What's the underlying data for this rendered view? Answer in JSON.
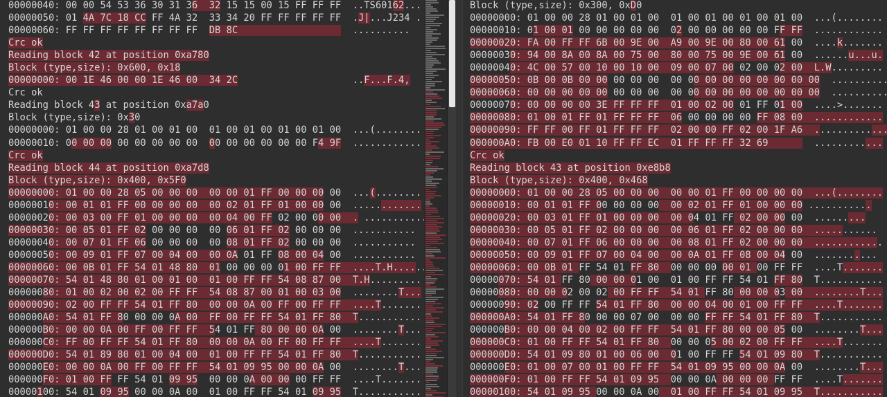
{
  "colors": {
    "background": "#2e2e2e",
    "diff_highlight": "#6c2b32",
    "text": "#d6d6d6"
  },
  "left_pane": {
    "lines": [
      [
        "00000040: 00 00 54 53 36 30 31 3",
        "6  32",
        " 15 15 00 15 FF FF FF  ..TS601",
        "62",
        "..."
      ],
      [
        "00000050: 01 ",
        "4A 7C 18 CC",
        " FF 4A 32  33 34 20 FF FF FF FF FF  .",
        "J|",
        "...J234 ."
      ],
      [
        "00000060: FF FF FF FF FF FF FF FF  ",
        "DB 8C                  ",
        "  .........."
      ],
      [
        "",
        "Crc ok"
      ],
      [
        "",
        "Reading block 42 at position 0xa780"
      ],
      [
        "",
        "Block (type,size): 0x600, 0x18"
      ],
      [
        "",
        "00000000: 00 1E 46 00 00 1E 46 00  34 2C",
        "                    ..",
        "F...F.4,"
      ],
      [
        "Crc ok"
      ],
      [
        "Reading block 4",
        "3",
        " at position 0x",
        "a7a",
        "0"
      ],
      [
        "Block (type,size): 0x",
        "3",
        "0"
      ],
      [
        "00000000: 01 00 00 28 01 00 01 00  01 00 01 00 01 00 01 00  ...(........"
      ],
      [
        "00000010: 0",
        "0 00 00",
        " 00 00 00 00 00  ",
        "0",
        "0 00 00 00 00 00 F",
        "4 9F",
        "  ............"
      ],
      [
        "",
        "Crc ok"
      ],
      [
        "",
        "Reading block 44 at position 0xa7d8"
      ],
      [
        "",
        "Block (type,size): 0x400, 0x5F0"
      ],
      [
        "",
        "00000000: 01 00 00 28 05 00 00 00  00 00 01 FF 00 00 00",
        " 00  ...",
        "(",
        "........"
      ],
      [
        "0000001",
        "0: 00 01 01 FF 00 00 00 00  00 02 01 FF 01 00 00",
        " 00  .....",
        "......."
      ],
      [
        "0000002",
        "0: 00 03 00 FF 01 00 00 00  00 04 00 FF",
        " 02 00 0",
        "0 00  .",
        " ..........."
      ],
      [
        "",
        "00000030: 00 05 01 FF 02",
        " 00 00 00  00 ",
        "06 01 FF 02",
        " 00 00 00  ..........."
      ],
      [
        "0000004",
        "0: 00 07 01 FF 06",
        " 00 00 00  00 ",
        "08 01 FF 02",
        " 00 00 00  ..........."
      ],
      [
        "0000005",
        "0: 00 09 01 FF 07 00 04 00  00 0A",
        " 01 FF ",
        "08 00 04",
        " 00  ..........."
      ],
      [
        "",
        "00000060: 00 0B 01 FF 54 01 48 80  01",
        " 00 00 00 0",
        "1 00 FF FF  ....T.H....",
        ".."
      ],
      [
        "",
        "00000070: 54 01 48 80 01 00 01 00  01 00 FF FF 54 08 87 00  T.H",
        "........."
      ],
      [
        "000000",
        "80: 01 00 02 00 02 00 FF FF  54 08 87 00 01 00 03 00",
        "  ........",
        "T..."
      ],
      [
        "",
        "00000090: 02 00 FF FF 54 01 FF 80  00 00 0A 00 FF 00 FF FF  ....T",
        "......."
      ],
      [
        "000000",
        "A0: 54 01 FF 8",
        "0 00 00 0",
        "A 00  FF 00 FF FF 54 01 FF 80  T",
        "..........."
      ],
      [
        "000000",
        "B0: 00 00 0A 00 FF 00 FF FF  5",
        "4 01 FF",
        " 80 00 00 0A",
        " 00  ........",
        "T",
        "..."
      ],
      [
        "000000",
        "C0: FF 00 FF FF 54 01 FF 80  00 00 0A 00 FF 00 FF FF  ....T",
        "......."
      ],
      [
        "",
        "000000D0: 54 01 89 80 01 00 04 00  01 00 FF FF 54 01 FF 80  T",
        "..........."
      ],
      [
        "000000",
        "E0: 00 00 0A 00 FF 00 FF FF  54 01 09 95 00 00 0A",
        " 00  ........",
        "T",
        "..."
      ],
      [
        "000000",
        "F0: 01 00 FF",
        " FF 54 01 ",
        "09 95",
        "  00 00 0",
        "A 00 00",
        " 00 FF FF  ....T......."
      ],
      [
        "00000",
        "1",
        "00: 54 01 ",
        "09 95",
        " 00 00 0A 00  01 00 FF FF 54 01 ",
        "09 95",
        "  T..........."
      ]
    ]
  },
  "right_pane": {
    "lines": [
      [
        "Block (type,size): 0x300, 0x",
        "D",
        "0"
      ],
      [
        "00000000: 01 00 00 28 01 00 01 00  01 00 01 00 01 00 01 00  ...(........"
      ],
      [
        "00000010: 0",
        "1 00 01",
        " 00 00 00 00 00  0",
        "2",
        " 00 00 00 00 00 F",
        "F FF",
        "  ............"
      ],
      [
        "",
        "00000020: FA 00 FF FF 6B 00 9E 00  A9 00 9E 00 80 00 61",
        " 00  ....",
        "k",
        "......."
      ],
      [
        "0000003",
        "0: 94 00 8A 00 8A 00 75 00  80 00 75 00 9E 00 61",
        " 00  ......",
        "u...u."
      ],
      [
        "0000004",
        "0: 4C 00 57 00 10 00 10 00  09 00 07 00",
        " 02 00 0",
        "2 00  L.W",
        "........."
      ],
      [
        "",
        "00000050: 0B 00 0B 00 00",
        " 00 00 00  00 0",
        "0 00 00 00 00 00 00 00",
        "  ..........."
      ],
      [
        "",
        "00000060: 00 00 00 00 00",
        " 00 00 00  00 0",
        "0 00 00 00 00 00 00 00",
        "  ..........."
      ],
      [
        "0000007",
        "0: 00 00 00 00 3E FF FF FF  01 00 02 00",
        " 01 FF 0",
        "1 00",
        "  ....>......."
      ],
      [
        "",
        "00000080: 01 00 01 FF 01 FF FF FF  06",
        " 00 00 00 00 ",
        "FF 08 00  ............"
      ],
      [
        "",
        "00000090: FF FF 00 FF 01 FF FF FF  02 00 00 FF 02 00 1F A6  .",
        ".........",
        "..."
      ],
      [
        "",
        "000000A0: FB 00 E0 01 10 FF FF EC  01 FF FF FF 32 69      ",
        "  .........",
        "..."
      ],
      [
        "",
        "Crc ok"
      ],
      [
        "",
        "Reading block 43 at position 0xe8b8"
      ],
      [
        "",
        "Block (type,size): 0x400, 0x468"
      ],
      [
        "",
        "00000000: 01 00 00 28 05 00 00 00  00 00 01 FF 00 00 00 00  ...(........"
      ],
      [
        "",
        "00000010: 00 01 01 FF 0",
        "0 00 00 00",
        "  00 02 01 FF 01 00 00 00",
        " ..........",
        "."
      ],
      [
        "",
        "00000020: 00 03 01 FF 01 00 00 00  00 0",
        "4 01 FF",
        " 02 00 00",
        " 00  ......",
        "..."
      ],
      [
        "",
        "00000030: 00 05 01 FF 02 00 00 00  00 06 01 FF 02 00 00 00  .....",
        "......"
      ],
      [
        "",
        "00000040: 00 07 01 FF 06 00 00 00  00 08 01 FF 02 00 00 00  ...........",
        "."
      ],
      [
        "",
        "00000050: 00 09 01 FF 07 00 04 00  00 0A 01 FF 08 00 04",
        " 00  .......",
        ".",
        "..."
      ],
      [
        "",
        "00000060: 00 0B 01 ",
        "FF 54 01 ",
        "FF 80  ",
        "00 00 00 ",
        "00 01 ",
        "00 FF FF  ....T",
        "......."
      ],
      [
        "00000",
        "070: 54 01 ",
        "FF 80",
        " 00 00 0",
        "1 00  01 00 FF FF 54 01 ",
        "FF 80",
        "  T..........."
      ],
      [
        "00000",
        "080: 00 00 0",
        "2 00 02",
        " 00 FF FF  54 01 ",
        "FF 80",
        " 00 00 0",
        "3",
        " 00  ........T..."
      ],
      [
        "000000",
        "90: 02",
        " 00 FF FF ",
        "54 01 FF 80  00 00 04 00 01 00 FF FF  ....T......."
      ],
      [
        "",
        "000000A0: 54 01 FF 8",
        "0 00 00 07 00  00 00 ",
        "FF FF 54 01 FF 80  T",
        "..........."
      ],
      [
        "000000",
        "B0: 00 00 04 00 02 00 FF FF  54 01 FF 80 00 00 05",
        " 00  ........",
        "T..."
      ],
      [
        "",
        "000000C0: 01 00 FF FF 54 01 FF 80  ",
        "00 00 0",
        "5 00 02 00 FF FF  ....T",
        "......."
      ],
      [
        "",
        "000000D0: 54 01 09 80 01 00 06 00  0",
        "1 00 FF FF ",
        "54 01 09 80  T",
        "..........."
      ],
      [
        "000000",
        "E0: 01 00 07 00 01 00 FF FF  54 01 09 95 00 00 0A",
        " 00  ........",
        "T..."
      ],
      [
        "",
        "000000F0: 01 00 FF FF 54 01 09 95  ",
        "00 00 0A",
        " 00 00 00 ",
        "FF FF  ....T",
        "......."
      ],
      [
        "",
        "00000100: 54 01 09 95 ",
        "00 00 0A 00",
        "  01 00 FF FF 54 01 09 95  T..........."
      ]
    ]
  }
}
